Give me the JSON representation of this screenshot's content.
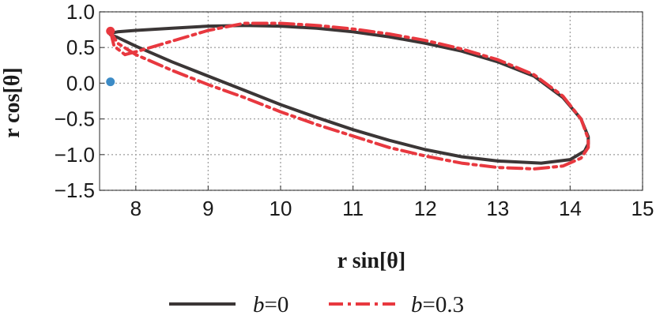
{
  "chart_data": {
    "type": "line",
    "xlabel": "r sin[θ]",
    "ylabel": "r cos[θ]",
    "xlim": [
      7.5,
      15
    ],
    "ylim": [
      -1.5,
      1.0
    ],
    "xticks": [
      "8",
      "9",
      "10",
      "11",
      "12",
      "13",
      "14",
      "15"
    ],
    "yticks": [
      "1.0",
      "0.5",
      "0.0",
      "-0.5",
      "-1.0",
      "-1.5"
    ],
    "grid": true,
    "legend_position": "bottom",
    "series": [
      {
        "name": "b=0",
        "color": "#3b3636",
        "style": "solid",
        "points": [
          [
            7.65,
            0.7
          ],
          [
            7.75,
            0.72
          ],
          [
            8.0,
            0.74
          ],
          [
            8.5,
            0.77
          ],
          [
            9.0,
            0.8
          ],
          [
            9.5,
            0.81
          ],
          [
            10.0,
            0.8
          ],
          [
            10.5,
            0.77
          ],
          [
            11.0,
            0.72
          ],
          [
            11.5,
            0.65
          ],
          [
            12.0,
            0.56
          ],
          [
            12.5,
            0.45
          ],
          [
            13.0,
            0.3
          ],
          [
            13.5,
            0.1
          ],
          [
            13.9,
            -0.2
          ],
          [
            14.15,
            -0.5
          ],
          [
            14.25,
            -0.75
          ],
          [
            14.25,
            -0.85
          ],
          [
            14.2,
            -0.95
          ],
          [
            14.0,
            -1.07
          ],
          [
            13.6,
            -1.12
          ],
          [
            13.0,
            -1.09
          ],
          [
            12.5,
            -1.03
          ],
          [
            12.0,
            -0.93
          ],
          [
            11.5,
            -0.8
          ],
          [
            11.0,
            -0.65
          ],
          [
            10.5,
            -0.48
          ],
          [
            10.0,
            -0.3
          ],
          [
            9.5,
            -0.1
          ],
          [
            9.0,
            0.1
          ],
          [
            8.5,
            0.3
          ],
          [
            8.0,
            0.52
          ],
          [
            7.75,
            0.64
          ],
          [
            7.65,
            0.68
          ]
        ]
      },
      {
        "name": "b=0.3",
        "color": "#e8383f",
        "style": "dashdot",
        "points": [
          [
            7.65,
            0.73
          ],
          [
            7.7,
            0.52
          ],
          [
            7.85,
            0.4
          ],
          [
            8.0,
            0.44
          ],
          [
            8.5,
            0.59
          ],
          [
            9.0,
            0.74
          ],
          [
            9.5,
            0.84
          ],
          [
            10.0,
            0.84
          ],
          [
            10.5,
            0.81
          ],
          [
            11.0,
            0.76
          ],
          [
            11.5,
            0.69
          ],
          [
            12.0,
            0.6
          ],
          [
            12.5,
            0.48
          ],
          [
            13.0,
            0.33
          ],
          [
            13.5,
            0.12
          ],
          [
            13.9,
            -0.18
          ],
          [
            14.15,
            -0.5
          ],
          [
            14.25,
            -0.78
          ],
          [
            14.25,
            -0.9
          ],
          [
            14.15,
            -1.05
          ],
          [
            13.9,
            -1.16
          ],
          [
            13.5,
            -1.2
          ],
          [
            13.0,
            -1.18
          ],
          [
            12.5,
            -1.12
          ],
          [
            12.0,
            -1.02
          ],
          [
            11.5,
            -0.9
          ],
          [
            11.0,
            -0.74
          ],
          [
            10.5,
            -0.58
          ],
          [
            10.0,
            -0.4
          ],
          [
            9.5,
            -0.2
          ],
          [
            9.0,
            -0.02
          ],
          [
            8.5,
            0.18
          ],
          [
            8.0,
            0.4
          ],
          [
            7.75,
            0.56
          ],
          [
            7.65,
            0.72
          ]
        ]
      }
    ],
    "markers": [
      {
        "x": 7.65,
        "y": 0.02,
        "color": "#3c8bc6"
      },
      {
        "x": 7.65,
        "y": 0.73,
        "color": "#e8383f"
      }
    ]
  }
}
